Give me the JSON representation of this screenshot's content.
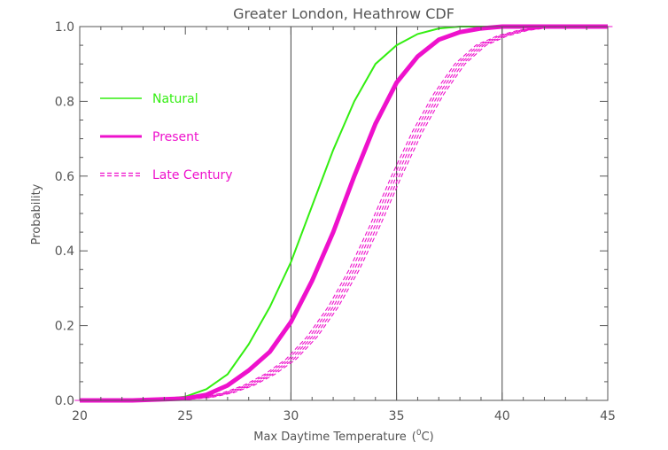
{
  "chart_data": {
    "type": "line",
    "title": "Greater London, Heathrow CDF",
    "xlabel": "Max Daytime Temperature",
    "xlabel_unit_prefix": "(",
    "xlabel_unit_sup": "0",
    "xlabel_unit_suffix": "C)",
    "ylabel": "Probability",
    "xlim": [
      20,
      45
    ],
    "ylim": [
      0,
      1
    ],
    "x_ticks": [
      20,
      25,
      30,
      35,
      40,
      45
    ],
    "y_ticks": [
      "0.0",
      "0.2",
      "0.4",
      "0.6",
      "0.8",
      "1.0"
    ],
    "vertical_reference_lines": [
      30,
      35,
      40
    ],
    "legend_position": "top-left",
    "colors": {
      "natural": "#33ee11",
      "present": "#ee11cc",
      "axes": "#555555"
    },
    "series": [
      {
        "name": "Natural",
        "color": "#33ee11",
        "style": "solid",
        "width": "normal",
        "x": [
          21,
          24,
          25,
          26,
          27,
          28,
          29,
          30,
          31,
          32,
          33,
          34,
          35,
          36,
          37,
          38,
          40,
          41
        ],
        "y": [
          0.0,
          0.004,
          0.01,
          0.03,
          0.07,
          0.15,
          0.25,
          0.37,
          0.52,
          0.67,
          0.8,
          0.9,
          0.95,
          0.98,
          0.995,
          1.0,
          1.0,
          1.0
        ]
      },
      {
        "name": "Present",
        "color": "#ee11cc",
        "style": "solid",
        "width": "thick",
        "x": [
          22.5,
          25,
          26,
          27,
          28,
          29,
          30,
          31,
          32,
          33,
          34,
          35,
          36,
          37,
          38,
          39,
          40,
          42
        ],
        "y": [
          0.0,
          0.005,
          0.015,
          0.04,
          0.08,
          0.13,
          0.21,
          0.32,
          0.45,
          0.6,
          0.74,
          0.85,
          0.92,
          0.965,
          0.985,
          0.995,
          1.0,
          1.0
        ]
      },
      {
        "name": "Late Century",
        "color": "#ee11cc",
        "style": "dashed",
        "width": "thin",
        "members": 5,
        "x": [
          23,
          25,
          26,
          27,
          28,
          29,
          30,
          31,
          32,
          33,
          34,
          35,
          36,
          37,
          38,
          39,
          40,
          41,
          42,
          43,
          45
        ],
        "y": [
          0.0,
          0.003,
          0.008,
          0.02,
          0.04,
          0.07,
          0.11,
          0.17,
          0.25,
          0.35,
          0.47,
          0.6,
          0.72,
          0.82,
          0.9,
          0.95,
          0.975,
          0.99,
          0.997,
          1.0,
          1.0
        ]
      }
    ]
  }
}
